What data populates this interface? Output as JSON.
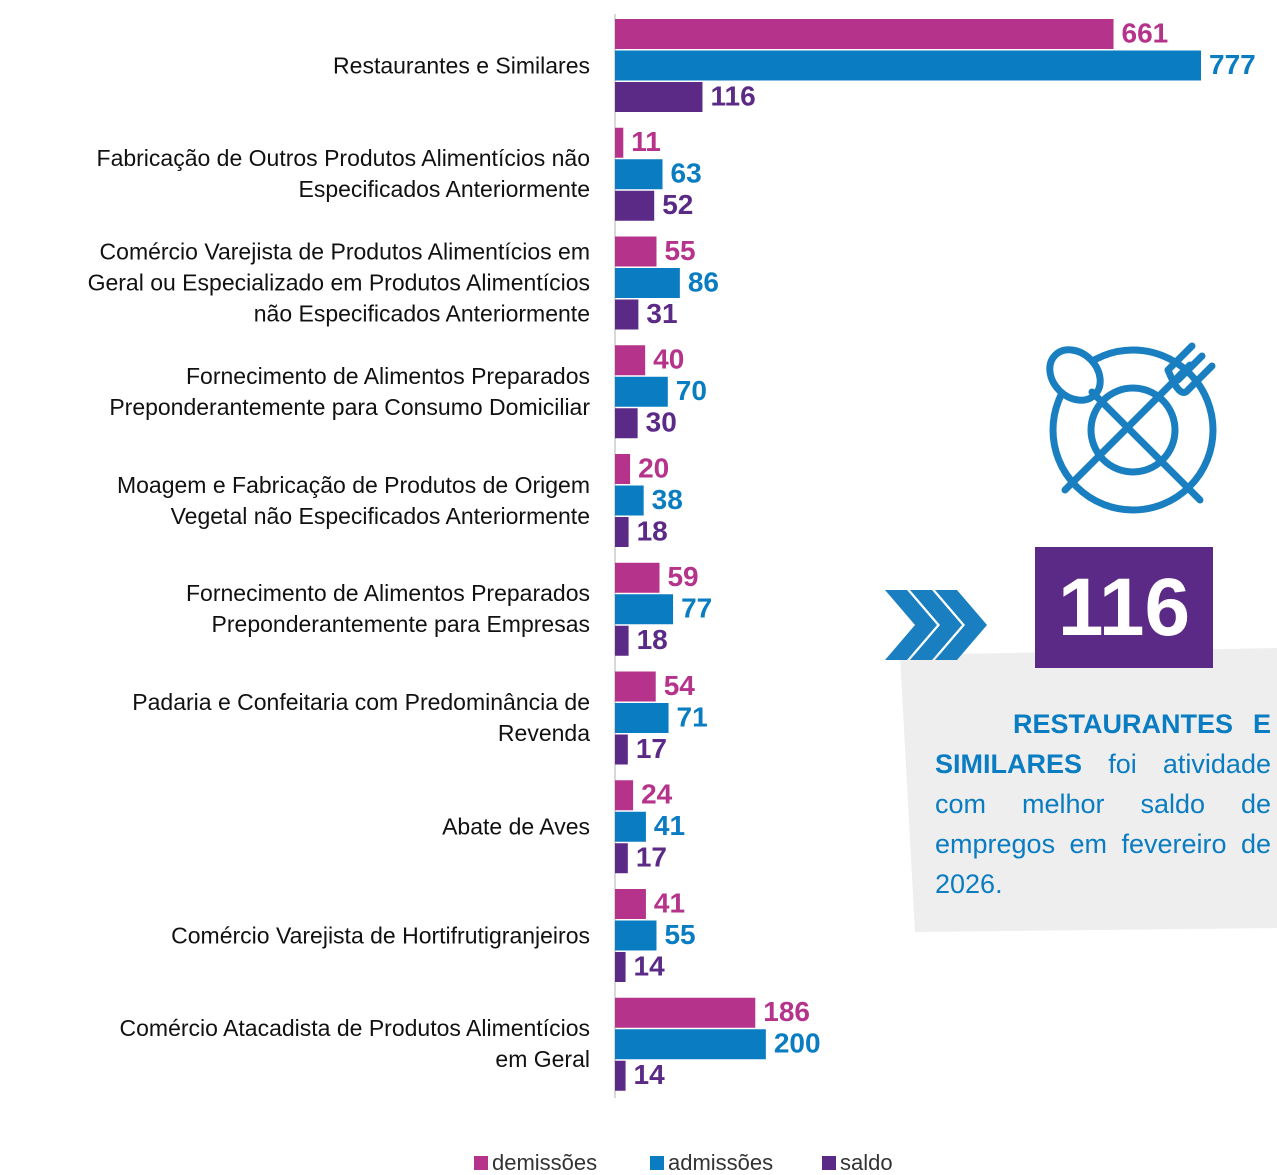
{
  "chart_data": {
    "type": "barh",
    "categories": [
      "Restaurantes e Similares",
      "Fabricação de Outros Produtos Alimentícios não\nEspecificados Anteriormente",
      "Comércio Varejista de Produtos Alimentícios em\nGeral ou Especializado em Produtos Alimentícios\nnão Especificados Anteriormente",
      "Fornecimento de Alimentos Preparados\nPreponderantemente para Consumo Domiciliar",
      "Moagem e Fabricação de Produtos de Origem\nVegetal não Especificados Anteriormente",
      "Fornecimento de Alimentos Preparados\nPreponderantemente para Empresas",
      "Padaria e Confeitaria com Predominância de\nRevenda",
      "Abate de Aves",
      "Comércio Varejista de Hortifrutigranjeiros",
      "Comércio Atacadista de Produtos Alimentícios\nem Geral"
    ],
    "series": [
      {
        "name": "demissões",
        "color": "#b5338a",
        "values": [
          661,
          11,
          55,
          40,
          20,
          59,
          54,
          24,
          41,
          186
        ]
      },
      {
        "name": "admissões",
        "color": "#0a7cc1",
        "values": [
          777,
          63,
          86,
          70,
          38,
          77,
          71,
          41,
          55,
          200
        ]
      },
      {
        "name": "saldo",
        "color": "#5b2a86",
        "values": [
          116,
          52,
          31,
          30,
          18,
          18,
          17,
          17,
          14,
          14
        ]
      }
    ],
    "legend": "bottom",
    "callout": {
      "value": 116,
      "bold": "RESTAURANTES E SIMILARES",
      "text": "foi atividade com melhor saldo de empregos em fevereiro de 2026."
    }
  }
}
